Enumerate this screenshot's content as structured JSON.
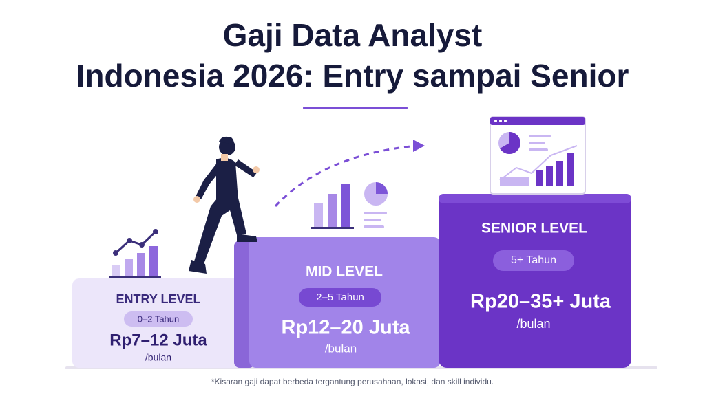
{
  "header": {
    "title_line_1": "Gaji Data Analyst",
    "title_line_2": "Indonesia 2026: Entry sampai Senior"
  },
  "levels": [
    {
      "name": "ENTRY LEVEL",
      "years": "0–2 Tahun",
      "salary": "Rp7–12 Juta",
      "unit": "/bulan"
    },
    {
      "name": "MID LEVEL",
      "years": "2–5 Tahun",
      "salary": "Rp12–20 Juta",
      "unit": "/bulan"
    },
    {
      "name": "SENIOR LEVEL",
      "years": "5+ Tahun",
      "salary": "Rp20–35+ Juta",
      "unit": "/bulan"
    }
  ],
  "footnote": "*Kisaran gaji dapat berbeda tergantung perusahaan, lokasi, dan skill individu."
}
